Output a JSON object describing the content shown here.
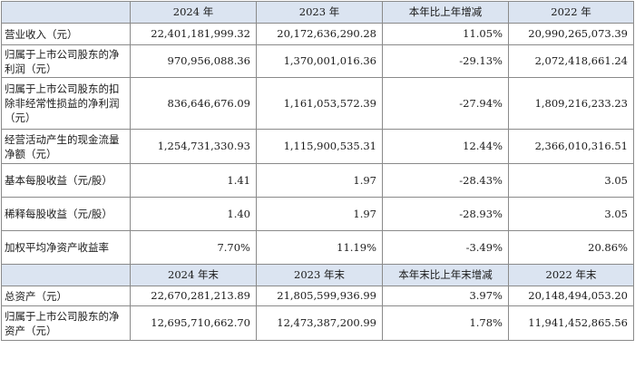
{
  "header1": {
    "label": "",
    "col1": "2024 年",
    "col2": "2023 年",
    "col3": "本年比上年增减",
    "col4": "2022 年"
  },
  "rows1": [
    {
      "label": "营业收入（元）",
      "v2024": "22,401,181,999.32",
      "v2023": "20,172,636,290.28",
      "change": "11.05%",
      "v2022": "20,990,265,073.39"
    },
    {
      "label": "归属于上市公司股东的净利润（元）",
      "v2024": "970,956,088.36",
      "v2023": "1,370,001,016.36",
      "change": "-29.13%",
      "v2022": "2,072,418,661.24"
    },
    {
      "label": "归属于上市公司股东的扣除非经常性损益的净利润（元）",
      "v2024": "836,646,676.09",
      "v2023": "1,161,053,572.39",
      "change": "-27.94%",
      "v2022": "1,809,216,233.23"
    },
    {
      "label": "经营活动产生的现金流量净额（元）",
      "v2024": "1,254,731,330.93",
      "v2023": "1,115,900,535.31",
      "change": "12.44%",
      "v2022": "2,366,010,316.51"
    },
    {
      "label": "基本每股收益（元/股）",
      "v2024": "1.41",
      "v2023": "1.97",
      "change": "-28.43%",
      "v2022": "3.05"
    },
    {
      "label": "稀释每股收益（元/股）",
      "v2024": "1.40",
      "v2023": "1.97",
      "change": "-28.93%",
      "v2022": "3.05"
    },
    {
      "label": "加权平均净资产收益率",
      "v2024": "7.70%",
      "v2023": "11.19%",
      "change": "-3.49%",
      "v2022": "20.86%"
    }
  ],
  "header2": {
    "label": "",
    "col1": "2024 年末",
    "col2": "2023 年末",
    "col3": "本年末比上年末增减",
    "col4": "2022 年末"
  },
  "rows2": [
    {
      "label": "总资产（元）",
      "v2024": "22,670,281,213.89",
      "v2023": "21,805,599,936.99",
      "change": "3.97%",
      "v2022": "20,148,494,053.20"
    },
    {
      "label": "归属于上市公司股东的净资产（元）",
      "v2024": "12,695,710,662.70",
      "v2023": "12,473,387,200.99",
      "change": "1.78%",
      "v2022": "11,941,452,865.56"
    }
  ]
}
